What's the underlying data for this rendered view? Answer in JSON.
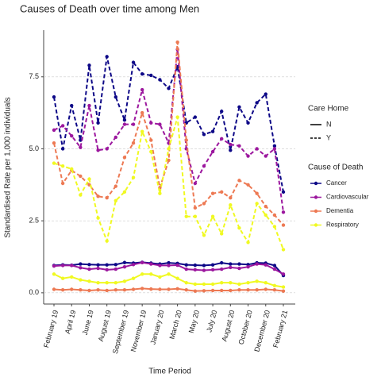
{
  "chart_data": {
    "type": "line",
    "title": "Causes of Death over time among Men",
    "x_label": "Time Period",
    "y_label": "Standardised Rate per 1,000 individuals",
    "categories": [
      "February 19",
      null,
      "April 19",
      null,
      "June 19",
      null,
      "August 19",
      null,
      "September 19",
      null,
      "November 19",
      null,
      "January 20",
      null,
      "March 20",
      null,
      "May 20",
      null,
      "July 20",
      null,
      "August 20",
      null,
      "October 20",
      null,
      "December 20",
      null,
      "February 21"
    ],
    "ylim": [
      -0.39,
      9.12
    ],
    "yticks": [
      {
        "value": 0,
        "label": "0.0"
      },
      2.5,
      {
        "value": 5,
        "label": "5.0"
      },
      7.5
    ],
    "grid": true,
    "linetype_legend": {
      "title": "Care Home",
      "items": [
        {
          "label": "N",
          "dashed": false
        },
        {
          "label": "Y",
          "dashed": true
        }
      ]
    },
    "color_legend_title": "Cause of Death",
    "series": [
      {
        "name": "Cancer",
        "color": "#0d0887",
        "dashed": false,
        "values": [
          0.95,
          0.97,
          0.96,
          1.0,
          0.98,
          0.97,
          0.97,
          0.98,
          1.05,
          1.03,
          1.06,
          1.03,
          1.0,
          1.04,
          1.02,
          0.97,
          0.96,
          0.95,
          0.97,
          1.04,
          1.0,
          1.0,
          0.98,
          1.04,
          1.03,
          0.95,
          0.6
        ]
      },
      {
        "name": "Cardiovascular",
        "color": "#9c179e",
        "dashed": false,
        "values": [
          0.93,
          0.95,
          0.95,
          0.87,
          0.82,
          0.85,
          0.8,
          0.82,
          0.9,
          0.98,
          1.05,
          1.0,
          0.95,
          0.95,
          0.96,
          0.82,
          0.8,
          0.78,
          0.8,
          0.82,
          0.88,
          0.85,
          0.9,
          1.0,
          0.97,
          0.82,
          0.65
        ]
      },
      {
        "name": "Dementia",
        "color": "#ed7953",
        "dashed": false,
        "values": [
          0.12,
          0.1,
          0.12,
          0.1,
          0.08,
          0.1,
          0.08,
          0.1,
          0.1,
          0.12,
          0.15,
          0.13,
          0.12,
          0.12,
          0.14,
          0.1,
          0.06,
          0.07,
          0.08,
          0.08,
          0.08,
          0.1,
          0.1,
          0.1,
          0.12,
          0.1,
          0.06
        ]
      },
      {
        "name": "Respiratory",
        "color": "#f0f921",
        "dashed": false,
        "values": [
          0.65,
          0.5,
          0.55,
          0.45,
          0.4,
          0.35,
          0.35,
          0.35,
          0.4,
          0.5,
          0.65,
          0.65,
          0.55,
          0.65,
          0.5,
          0.35,
          0.3,
          0.3,
          0.3,
          0.35,
          0.35,
          0.3,
          0.35,
          0.4,
          0.35,
          0.25,
          0.2
        ]
      },
      {
        "name": "Cancer",
        "color": "#0d0887",
        "dashed": true,
        "values": [
          6.8,
          5.0,
          6.5,
          5.3,
          7.9,
          5.9,
          8.2,
          6.8,
          6.0,
          8.0,
          7.6,
          7.55,
          7.4,
          7.1,
          7.85,
          5.9,
          6.1,
          5.5,
          5.6,
          6.3,
          4.95,
          6.45,
          5.9,
          6.6,
          6.9,
          5.1,
          3.5
        ]
      },
      {
        "name": "Cardiovascular",
        "color": "#9c179e",
        "dashed": true,
        "values": [
          5.65,
          5.8,
          5.45,
          5.05,
          6.5,
          4.95,
          5.0,
          5.4,
          5.85,
          5.85,
          7.05,
          5.9,
          5.85,
          5.2,
          8.45,
          5.0,
          3.8,
          4.4,
          4.9,
          5.35,
          5.15,
          5.1,
          4.75,
          5.0,
          4.75,
          5.0,
          2.8
        ]
      },
      {
        "name": "Dementia",
        "color": "#ed7953",
        "dashed": true,
        "values": [
          5.2,
          3.8,
          4.25,
          4.05,
          3.75,
          3.35,
          3.3,
          3.7,
          4.7,
          5.2,
          6.25,
          5.3,
          3.65,
          4.6,
          8.7,
          5.3,
          2.95,
          3.1,
          3.45,
          3.5,
          3.3,
          3.9,
          3.75,
          3.45,
          3.0,
          2.7,
          2.35
        ]
      },
      {
        "name": "Respiratory",
        "color": "#f0f921",
        "dashed": true,
        "values": [
          4.5,
          4.4,
          4.3,
          3.4,
          3.95,
          2.6,
          1.8,
          3.2,
          3.5,
          4.0,
          5.6,
          4.9,
          3.45,
          5.0,
          6.1,
          2.65,
          2.65,
          2.0,
          2.65,
          2.05,
          3.05,
          2.25,
          1.75,
          3.1,
          2.7,
          2.3,
          1.5
        ]
      }
    ]
  }
}
